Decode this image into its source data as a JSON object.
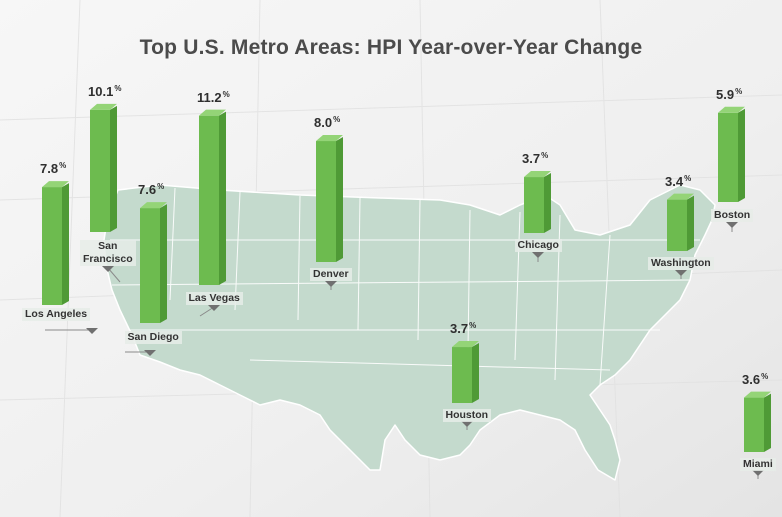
{
  "chart_data": {
    "type": "bar",
    "title": "Top U.S. Metro Areas: HPI Year-over-Year Change",
    "unit": "%",
    "categories": [
      "Los Angeles",
      "San Francisco",
      "San Diego",
      "Las Vegas",
      "Denver",
      "Houston",
      "Chicago",
      "Washington",
      "Boston",
      "Miami"
    ],
    "values": [
      7.8,
      10.1,
      7.6,
      11.2,
      8.0,
      3.7,
      3.7,
      3.4,
      5.9,
      3.6
    ],
    "value_labels": [
      "7.8",
      "10.1",
      "7.6",
      "11.2",
      "8.0",
      "3.7",
      "3.7",
      "3.4",
      "5.9",
      "3.6"
    ],
    "city_labels": [
      "Los Angeles",
      "San\nFrancisco",
      "San Diego",
      "Las Vegas",
      "Denver",
      "Houston",
      "Chicago",
      "Washington",
      "Boston",
      "Miami"
    ],
    "colors": {
      "bar_front": "#6dbb4f",
      "bar_side": "#4f9a36",
      "bar_top": "#94d477",
      "map": "#c4dacd",
      "map_edge": "#ffffff",
      "title": "#4b4b4b"
    }
  }
}
